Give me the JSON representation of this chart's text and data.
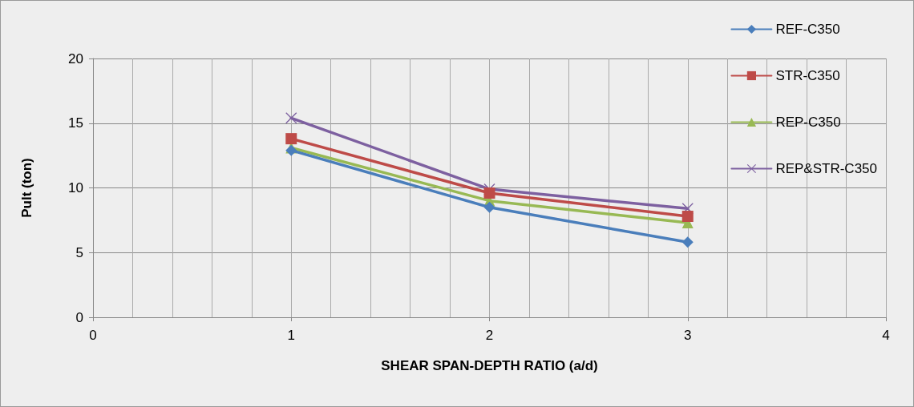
{
  "chart_data": {
    "type": "line",
    "xlabel": "SHEAR SPAN-DEPTH RATIO (a/d)",
    "ylabel": "Pult (ton)",
    "x": [
      1,
      2,
      3
    ],
    "series": [
      {
        "name": "REF-C350",
        "color": "#4a7ebb",
        "marker": "diamond",
        "values": [
          12.9,
          8.5,
          5.8
        ]
      },
      {
        "name": "STR-C350",
        "color": "#be4b48",
        "marker": "square",
        "values": [
          13.8,
          9.6,
          7.8
        ]
      },
      {
        "name": "REP-C350",
        "color": "#98b954",
        "marker": "triangle",
        "values": [
          13.1,
          9.0,
          7.3
        ]
      },
      {
        "name": "REP&STR-C350",
        "color": "#7d60a0",
        "marker": "cross",
        "values": [
          15.4,
          9.9,
          8.4
        ]
      }
    ],
    "xlim": [
      0,
      4
    ],
    "xticks": [
      0,
      1,
      2,
      3,
      4
    ],
    "ylim": [
      0,
      20
    ],
    "yticks": [
      0,
      5,
      10,
      15,
      20
    ],
    "grid": true,
    "legend": "top right"
  }
}
